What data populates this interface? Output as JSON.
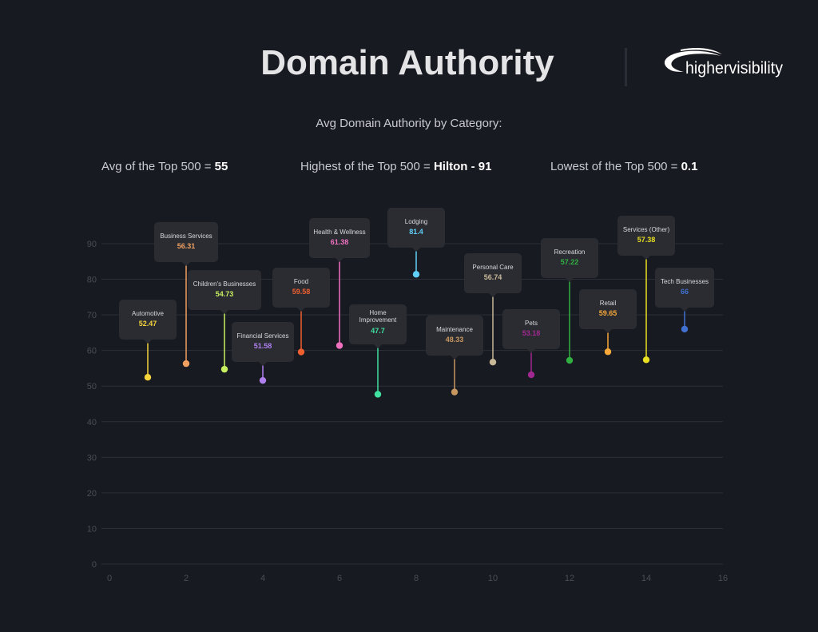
{
  "header": {
    "title": "Domain Authority",
    "logo_text": "highervisibility",
    "subtitle": "Avg Domain Authority by Category:"
  },
  "stats": [
    {
      "label": "Avg of the Top 500 = ",
      "value": "55"
    },
    {
      "label": "Highest of the Top 500 = ",
      "value": "Hilton - 91"
    },
    {
      "label": "Lowest of the Top 500 = ",
      "value": "0.1"
    }
  ],
  "chart_data": {
    "type": "scatter",
    "title": "",
    "xlabel": "",
    "ylabel": "",
    "xlim": [
      0,
      16
    ],
    "ylim": [
      0,
      90
    ],
    "x_ticks": [
      "0",
      "2",
      "4",
      "6",
      "8",
      "10",
      "12",
      "14",
      "16"
    ],
    "y_ticks": [
      "0",
      "10",
      "20",
      "30",
      "40",
      "50",
      "60",
      "70",
      "80",
      "90"
    ],
    "grid": true,
    "points": [
      {
        "x": 1,
        "label": "Automotive",
        "value": 52.47,
        "display": "52.47",
        "color": "#f5d33b"
      },
      {
        "x": 2,
        "label": "Business Services",
        "value": 56.31,
        "display": "56.31",
        "color": "#f0a060"
      },
      {
        "x": 3,
        "label": "Children's Businesses",
        "value": 54.73,
        "display": "54.73",
        "color": "#c8f060"
      },
      {
        "x": 4,
        "label": "Financial Services",
        "value": 51.58,
        "display": "51.58",
        "color": "#b080f0"
      },
      {
        "x": 5,
        "label": "Food",
        "value": 59.58,
        "display": "59.58",
        "color": "#f06030"
      },
      {
        "x": 6,
        "label": "Health & Wellness",
        "value": 61.38,
        "display": "61.38",
        "color": "#f070c0"
      },
      {
        "x": 7,
        "label": "Home Improvement",
        "value": 47.7,
        "display": "47.7",
        "color": "#40e0a0"
      },
      {
        "x": 8,
        "label": "Lodging",
        "value": 81.4,
        "display": "81.4",
        "color": "#60d0f8"
      },
      {
        "x": 9,
        "label": "Maintenance",
        "value": 48.33,
        "display": "48.33",
        "color": "#c89860"
      },
      {
        "x": 10,
        "label": "Personal Care",
        "value": 56.74,
        "display": "56.74",
        "color": "#c8b898"
      },
      {
        "x": 11,
        "label": "Pets",
        "value": 53.18,
        "display": "53.18",
        "color": "#a02890"
      },
      {
        "x": 12,
        "label": "Recreation",
        "value": 57.22,
        "display": "57.22",
        "color": "#30b040"
      },
      {
        "x": 13,
        "label": "Retail",
        "value": 59.65,
        "display": "59.65",
        "color": "#f8a838"
      },
      {
        "x": 14,
        "label": "Services (Other)",
        "value": 57.38,
        "display": "57.38",
        "color": "#e8e020"
      },
      {
        "x": 15,
        "label": "Tech Businesses",
        "value": 66,
        "display": "66",
        "color": "#4070d0"
      }
    ]
  }
}
